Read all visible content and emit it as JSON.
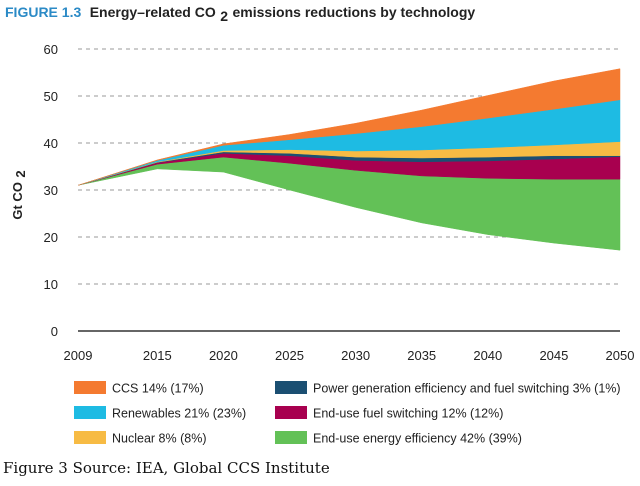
{
  "figure": {
    "label": "FIGURE 1.3",
    "title_main": "Energy–related CO",
    "title_sub": "2",
    "title_tail": " emissions reductions by technology"
  },
  "caption": "Figure 3 Source: IEA, Global CCS Institute",
  "chart_data": {
    "type": "area",
    "ylabel": "Gt CO",
    "ylabel_sub": "2",
    "ylim": [
      0,
      60
    ],
    "yticks": [
      0,
      10,
      20,
      30,
      40,
      50,
      60
    ],
    "xticks": [
      2009,
      2015,
      2020,
      2025,
      2030,
      2035,
      2040,
      2045,
      2050
    ],
    "grid": true,
    "legend_position": "bottom",
    "x": [
      2009,
      2015,
      2020,
      2025,
      2030,
      2035,
      2040,
      2045,
      2050
    ],
    "bands": [
      {
        "legend": "End-use energy efficiency 42% (39%)",
        "color": "#63c157",
        "lower": [
          31,
          34.5,
          33.8,
          30,
          26.3,
          23,
          20.5,
          18.7,
          17.2
        ],
        "upper": [
          31,
          35.5,
          37,
          35.7,
          34.2,
          33,
          32.5,
          32.3,
          32.3
        ]
      },
      {
        "legend": "End-use fuel switching 12% (12%)",
        "color": "#a8004f",
        "lower": [
          31,
          35.5,
          37,
          35.7,
          34.2,
          33,
          32.5,
          32.3,
          32.3
        ],
        "upper": [
          31,
          35.8,
          37.8,
          37.3,
          36.3,
          36,
          36.2,
          36.6,
          37.1
        ]
      },
      {
        "legend": "Power generation efficiency and fuel switching 3% (1%)",
        "color": "#1b4f72",
        "lower": [
          31,
          35.8,
          37.8,
          37.3,
          36.3,
          36,
          36.2,
          36.6,
          37.1
        ],
        "upper": [
          31,
          35.9,
          38.1,
          37.8,
          37,
          36.8,
          37,
          37.3,
          37.3
        ]
      },
      {
        "legend": "Nuclear 8% (8%)",
        "color": "#f7bb44",
        "lower": [
          31,
          35.9,
          38.1,
          37.8,
          37,
          36.8,
          37,
          37.3,
          37.3
        ],
        "upper": [
          31,
          36,
          38.4,
          38.6,
          38.3,
          38.5,
          39,
          39.6,
          40.3
        ]
      },
      {
        "legend": "Renewables 21% (23%)",
        "color": "#1ebbe3",
        "lower": [
          31,
          36,
          38.4,
          38.6,
          38.3,
          38.5,
          39,
          39.6,
          40.3
        ],
        "upper": [
          31,
          36.3,
          39.5,
          40.7,
          42,
          43.5,
          45.3,
          47.2,
          49.2
        ]
      },
      {
        "legend": "CCS 14% (17%)",
        "color": "#f47a30",
        "lower": [
          31,
          36.3,
          39.5,
          40.7,
          42,
          43.5,
          45.3,
          47.2,
          49.2
        ],
        "upper": [
          31,
          36.4,
          39.8,
          41.8,
          44.2,
          47,
          50.1,
          53.2,
          55.8
        ]
      }
    ],
    "legend_order": [
      {
        "label": "CCS 14% (17%)",
        "color": "#f47a30"
      },
      {
        "label": "Power generation efficiency and fuel switching 3% (1%)",
        "color": "#1b4f72"
      },
      {
        "label": "Renewables 21% (23%)",
        "color": "#1ebbe3"
      },
      {
        "label": "End-use fuel switching 12% (12%)",
        "color": "#a8004f"
      },
      {
        "label": "Nuclear 8% (8%)",
        "color": "#f7bb44"
      },
      {
        "label": "End-use energy efficiency 42% (39%)",
        "color": "#63c157"
      }
    ]
  }
}
